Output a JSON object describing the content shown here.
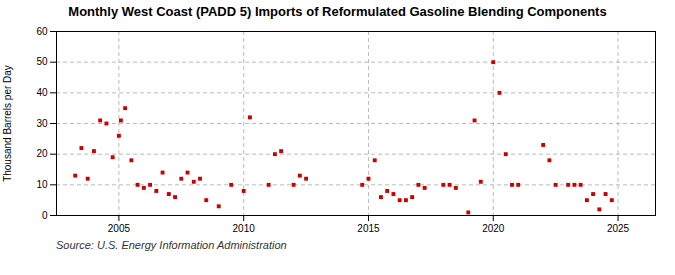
{
  "chart_data": {
    "type": "scatter",
    "title": "Monthly West Coast (PADD 5) Imports of Reformulated Gasoline Blending Components",
    "ylabel": "Thousand Barrels per Day",
    "source": "Source: U.S. Energy Information Administration",
    "color": "#cc0000",
    "marker": "square",
    "grid": true,
    "xlim": [
      2002.5,
      2026.5
    ],
    "ylim": [
      0,
      60
    ],
    "xticks": [
      2005,
      2010,
      2015,
      2020,
      2025
    ],
    "yticks": [
      0,
      10,
      20,
      30,
      40,
      50,
      60
    ],
    "x": [
      2003.25,
      2003.5,
      2003.75,
      2004.0,
      2004.25,
      2004.5,
      2004.75,
      2005.0,
      2005.08,
      2005.25,
      2005.5,
      2005.75,
      2006.0,
      2006.25,
      2006.5,
      2006.75,
      2007.0,
      2007.25,
      2007.5,
      2007.75,
      2008.0,
      2008.25,
      2008.5,
      2009.0,
      2009.5,
      2010.0,
      2010.25,
      2011.0,
      2011.25,
      2011.5,
      2012.0,
      2012.25,
      2012.5,
      2014.75,
      2015.0,
      2015.25,
      2015.5,
      2015.75,
      2016.0,
      2016.25,
      2016.5,
      2016.75,
      2017.0,
      2017.25,
      2018.0,
      2018.25,
      2018.5,
      2019.0,
      2019.25,
      2019.5,
      2020.0,
      2020.25,
      2020.5,
      2020.75,
      2021.0,
      2022.0,
      2022.25,
      2022.5,
      2023.0,
      2023.25,
      2023.5,
      2023.75,
      2024.0,
      2024.25,
      2024.5,
      2024.75
    ],
    "values": [
      13,
      22,
      12,
      21,
      31,
      30,
      19,
      26,
      31,
      35,
      18,
      10,
      9,
      10,
      8,
      14,
      7,
      6,
      12,
      14,
      11,
      12,
      5,
      3,
      10,
      8,
      32,
      10,
      20,
      21,
      10,
      13,
      12,
      10,
      12,
      18,
      6,
      8,
      7,
      5,
      5,
      6,
      10,
      9,
      10,
      10,
      9,
      1,
      31,
      11,
      50,
      40,
      20,
      10,
      10,
      23,
      18,
      10,
      10,
      10,
      10,
      5,
      7,
      2,
      7,
      5
    ]
  }
}
